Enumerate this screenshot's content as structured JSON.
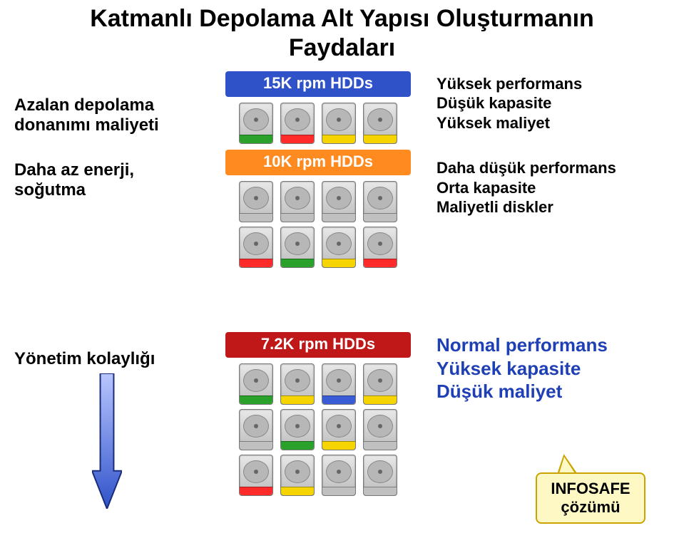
{
  "title_line1": "Katmanlı Depolama Alt Yapısı Oluşturmanın",
  "title_line2": "Faydaları",
  "left": {
    "block1_line1": "Azalan depolama",
    "block1_line2": "donanımı maliyeti",
    "block2": "Daha az enerji, soğutma",
    "bottom": "Yönetim kolaylığı"
  },
  "tiers": [
    {
      "label": "15K rpm HDDs",
      "label_bg": "#2f52c9",
      "drive_count": 4,
      "columns": 4,
      "band_colors": [
        "#2aa12a",
        "#ff2a2a",
        "#f5d400",
        "#f5d400"
      ]
    },
    {
      "label": "10K rpm HDDs",
      "label_bg": "#ff8a1f",
      "drive_count": 8,
      "columns": 4,
      "band_colors": [
        "#c0c0c0",
        "#c0c0c0",
        "#c0c0c0",
        "#c0c0c0",
        "#ff2a2a",
        "#2aa12a",
        "#f5d400",
        "#ff2a2a"
      ]
    },
    {
      "label": "7.2K rpm HDDs",
      "label_bg": "#c01818",
      "drive_count": 12,
      "columns": 4,
      "band_colors": [
        "#2aa12a",
        "#f5d400",
        "#3a5bd6",
        "#f5d400",
        "#c0c0c0",
        "#2aa12a",
        "#f5d400",
        "#c0c0c0",
        "#ff2a2a",
        "#f5d400",
        "#c0c0c0",
        "#c0c0c0"
      ]
    }
  ],
  "right": {
    "top_line1": "Yüksek performans",
    "top_line2": "Düşük kapasite",
    "top_line3": "Yüksek maliyet",
    "mid_line1": "Daha düşük performans",
    "mid_line2": "Orta kapasite",
    "mid_line3": "Maliyetli diskler",
    "bottom_line1": "Normal performans",
    "bottom_line2": "Yüksek kapasite",
    "bottom_line3": "Düşük maliyet",
    "bottom_color": "#1f3fb5"
  },
  "arrow": {
    "width": 42,
    "height": 190,
    "fill_from": "#b9c6ff",
    "fill_to": "#2f52c9",
    "stroke": "#1a2d7a"
  },
  "callout": {
    "line1": "INFOSAFE",
    "line2": "çözümü",
    "bg": "#fef8c4",
    "border": "#cca300"
  }
}
